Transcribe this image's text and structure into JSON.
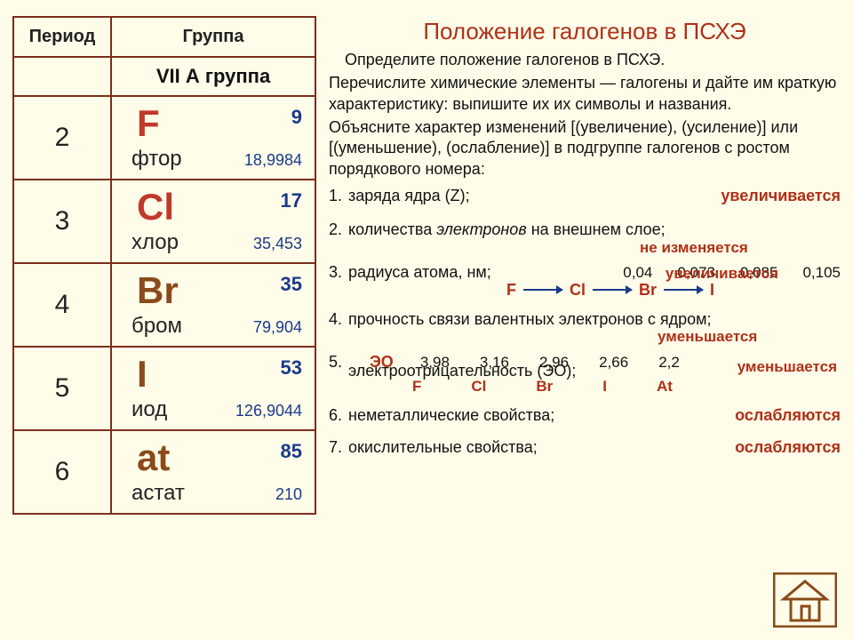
{
  "title": "Положение галогенов в ПСХЭ",
  "tableHeaders": {
    "period": "Период",
    "group": "Группа",
    "subgroup": "VII А группа"
  },
  "elements": [
    {
      "period": "2",
      "symbol": "F",
      "name": "фтор",
      "z": "9",
      "mass": "18,9984",
      "symColor": "red"
    },
    {
      "period": "3",
      "symbol": "Cl",
      "name": "хлор",
      "z": "17",
      "mass": "35,453",
      "symColor": "red"
    },
    {
      "period": "4",
      "symbol": "Br",
      "name": "бром",
      "z": "35",
      "mass": "79,904",
      "symColor": "brown"
    },
    {
      "period": "5",
      "symbol": "I",
      "name": "иод",
      "z": "53",
      "mass": "126,9044",
      "symColor": "brown"
    },
    {
      "period": "6",
      "symbol": "at",
      "name": "астат",
      "z": "85",
      "mass": "210",
      "symColor": "brown"
    }
  ],
  "intro1": "Определите положение галогенов в ПСХЭ.",
  "intro2": "Перечислите химические элементы — галогены и дайте им краткую характеристику: выпишите их их символы и названия.",
  "intro3": "Объясните характер изменений [(увеличение), (усиление)] или [(уменьшение), (ослабление)] в подгруппе галогенов с ростом порядкового номера:",
  "q1": {
    "n": "1.",
    "t": "заряда ядра (Z);",
    "a": "увеличивается"
  },
  "q2": {
    "n": "2.",
    "t": "количества электронов на внешнем слое;",
    "a": "не изменяется"
  },
  "q3": {
    "n": "3.",
    "t": "радиуса атома, нм;",
    "a": "увеличивается",
    "vals": [
      "0,04",
      "0,073",
      "0,085",
      "0,105"
    ],
    "syms": [
      "F",
      "Cl",
      "Br",
      "I"
    ]
  },
  "q4": {
    "n": "4.",
    "t": "прочность связи валентных электронов с ядром;",
    "a": "уменьшается"
  },
  "q5": {
    "n": "5.",
    "t": "электроотрицательность (ЭО);",
    "a": "уменьшается",
    "eolabel": "ЭО",
    "vals": [
      "3,98",
      "3,16",
      "2,96",
      "2,66",
      "2,2"
    ],
    "syms": [
      "F",
      "Cl",
      "Br",
      "I",
      "At"
    ]
  },
  "q6": {
    "n": "6.",
    "t": "неметаллические свойства;",
    "a": "ослабляются"
  },
  "q7": {
    "n": "7.",
    "t": "окислительные свойства;",
    "a": "ослабляются"
  },
  "colors": {
    "background": "#fffde9",
    "border": "#7a2e1a",
    "accent": "#b03018",
    "symbolRed": "#c0392b",
    "symbolBrown": "#8b4a1a",
    "number": "#1a3a8a"
  },
  "homeIcon": "home-icon"
}
